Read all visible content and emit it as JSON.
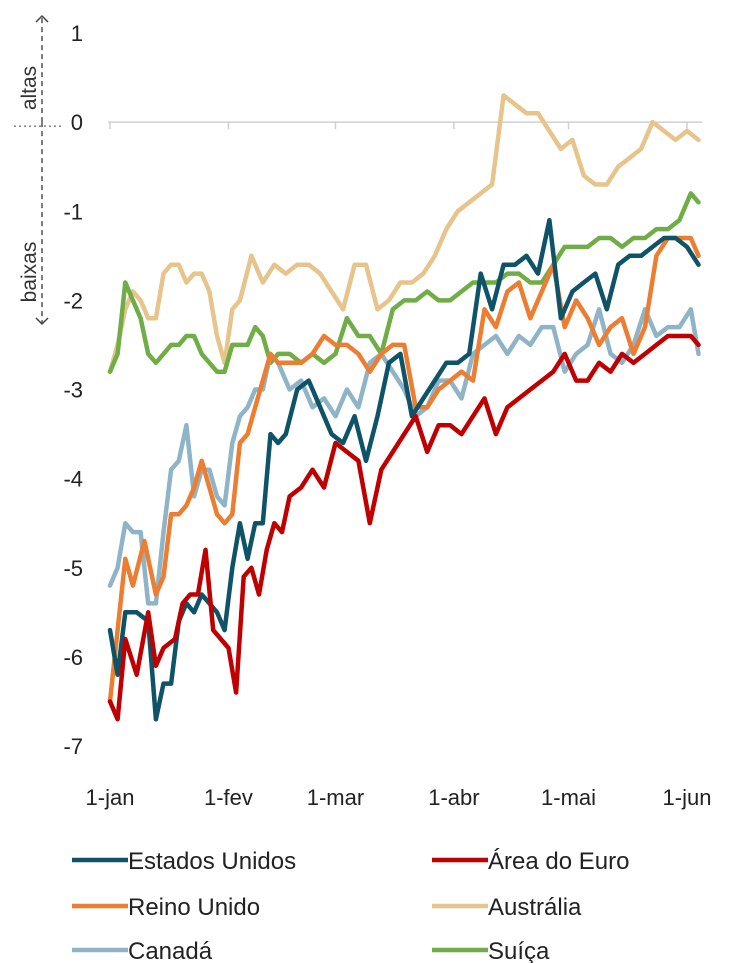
{
  "chart_data": {
    "type": "line",
    "title": "",
    "xlabel": "",
    "ylabel": "",
    "ylim": [
      -7,
      1
    ],
    "yticks": [
      1,
      0,
      -1,
      -2,
      -3,
      -4,
      -5,
      -6,
      -7
    ],
    "x_tick_labels": [
      "1-jan",
      "1-fev",
      "1-mar",
      "1-abr",
      "1-mai",
      "1-jun"
    ],
    "x_tick_days": [
      0,
      31,
      59,
      90,
      120,
      151
    ],
    "x_range_days": [
      0,
      154
    ],
    "grid": false,
    "legend_position": "bottom",
    "annotations": {
      "up_label": "altas",
      "down_label": "baixas"
    },
    "series": [
      {
        "name": "Estados Unidos",
        "color": "#0e5368",
        "x": [
          0,
          2,
          4,
          7,
          10,
          12,
          14,
          16,
          18,
          20,
          22,
          24,
          26,
          28,
          30,
          32,
          34,
          36,
          38,
          40,
          42,
          44,
          46,
          49,
          52,
          55,
          58,
          61,
          64,
          67,
          70,
          73,
          76,
          79,
          82,
          85,
          88,
          91,
          94,
          97,
          100,
          103,
          106,
          109,
          112,
          115,
          118,
          121,
          124,
          127,
          130,
          133,
          136,
          139,
          142,
          145,
          148,
          151,
          154
        ],
        "values": [
          -5.7,
          -6.2,
          -5.5,
          -5.5,
          -5.6,
          -6.7,
          -6.3,
          -6.3,
          -5.6,
          -5.4,
          -5.5,
          -5.3,
          -5.4,
          -5.5,
          -5.7,
          -5.0,
          -4.5,
          -4.9,
          -4.5,
          -4.5,
          -3.5,
          -3.6,
          -3.5,
          -3.0,
          -2.9,
          -3.2,
          -3.5,
          -3.6,
          -3.3,
          -3.8,
          -3.3,
          -2.7,
          -2.6,
          -3.3,
          -3.1,
          -2.9,
          -2.7,
          -2.7,
          -2.6,
          -1.7,
          -2.1,
          -1.6,
          -1.6,
          -1.5,
          -1.7,
          -1.1,
          -2.2,
          -1.9,
          -1.8,
          -1.7,
          -2.1,
          -1.6,
          -1.5,
          -1.5,
          -1.4,
          -1.3,
          -1.3,
          -1.4,
          -1.6
        ]
      },
      {
        "name": "Área do Euro",
        "color": "#c00000",
        "x": [
          0,
          2,
          4,
          7,
          10,
          12,
          14,
          17,
          19,
          21,
          23,
          25,
          27,
          29,
          31,
          33,
          35,
          37,
          39,
          41,
          43,
          45,
          47,
          50,
          53,
          56,
          59,
          62,
          65,
          68,
          71,
          74,
          77,
          80,
          83,
          86,
          89,
          92,
          95,
          98,
          101,
          104,
          107,
          110,
          113,
          116,
          119,
          122,
          125,
          128,
          131,
          134,
          137,
          140,
          143,
          146,
          149,
          152,
          154
        ],
        "values": [
          -6.5,
          -6.7,
          -5.8,
          -6.2,
          -5.5,
          -6.1,
          -5.9,
          -5.8,
          -5.4,
          -5.3,
          -5.3,
          -4.8,
          -5.7,
          -5.8,
          -5.9,
          -6.4,
          -5.1,
          -5.0,
          -5.3,
          -4.8,
          -4.5,
          -4.6,
          -4.2,
          -4.1,
          -3.9,
          -4.1,
          -3.6,
          -3.7,
          -3.8,
          -4.5,
          -3.9,
          -3.7,
          -3.5,
          -3.3,
          -3.7,
          -3.4,
          -3.4,
          -3.5,
          -3.3,
          -3.1,
          -3.5,
          -3.2,
          -3.1,
          -3.0,
          -2.9,
          -2.8,
          -2.6,
          -2.9,
          -2.9,
          -2.7,
          -2.8,
          -2.6,
          -2.7,
          -2.6,
          -2.5,
          -2.4,
          -2.4,
          -2.4,
          -2.5
        ]
      },
      {
        "name": "Reino Unido",
        "color": "#ed7d31",
        "x": [
          0,
          2,
          4,
          6,
          9,
          12,
          14,
          16,
          18,
          20,
          22,
          24,
          26,
          28,
          30,
          32,
          34,
          36,
          38,
          40,
          42,
          44,
          47,
          50,
          53,
          56,
          59,
          62,
          65,
          68,
          71,
          74,
          77,
          80,
          83,
          86,
          89,
          92,
          95,
          98,
          101,
          104,
          107,
          110,
          113,
          116,
          119,
          122,
          125,
          128,
          131,
          134,
          137,
          140,
          143,
          146,
          149,
          152,
          154
        ],
        "values": [
          -6.5,
          -5.7,
          -4.9,
          -5.2,
          -4.7,
          -5.3,
          -5.1,
          -4.4,
          -4.4,
          -4.3,
          -4.1,
          -3.8,
          -4.1,
          -4.4,
          -4.5,
          -4.4,
          -3.6,
          -3.5,
          -3.2,
          -2.9,
          -2.6,
          -2.7,
          -2.7,
          -2.7,
          -2.6,
          -2.4,
          -2.5,
          -2.5,
          -2.6,
          -2.8,
          -2.6,
          -2.5,
          -2.5,
          -3.2,
          -3.2,
          -3.0,
          -2.9,
          -2.8,
          -2.9,
          -2.1,
          -2.3,
          -1.9,
          -1.8,
          -2.2,
          -1.9,
          -1.6,
          -2.3,
          -2.0,
          -2.2,
          -2.5,
          -2.3,
          -2.2,
          -2.6,
          -2.3,
          -1.5,
          -1.3,
          -1.3,
          -1.3,
          -1.5
        ]
      },
      {
        "name": "Austrália",
        "color": "#e6c48c",
        "x": [
          0,
          2,
          4,
          6,
          8,
          10,
          12,
          14,
          16,
          18,
          20,
          22,
          24,
          26,
          28,
          30,
          32,
          34,
          37,
          40,
          43,
          46,
          49,
          52,
          55,
          58,
          61,
          64,
          67,
          70,
          73,
          76,
          79,
          82,
          85,
          88,
          91,
          94,
          97,
          100,
          103,
          106,
          109,
          112,
          115,
          118,
          121,
          124,
          127,
          130,
          133,
          136,
          139,
          142,
          145,
          148,
          151,
          154
        ],
        "values": [
          -2.8,
          -2.5,
          -2.1,
          -1.9,
          -2.0,
          -2.2,
          -2.2,
          -1.7,
          -1.6,
          -1.6,
          -1.8,
          -1.7,
          -1.7,
          -1.9,
          -2.4,
          -2.7,
          -2.1,
          -2.0,
          -1.5,
          -1.8,
          -1.6,
          -1.7,
          -1.6,
          -1.6,
          -1.7,
          -1.9,
          -2.1,
          -1.6,
          -1.6,
          -2.1,
          -2.0,
          -1.8,
          -1.8,
          -1.7,
          -1.5,
          -1.2,
          -1.0,
          -0.9,
          -0.8,
          -0.7,
          0.3,
          0.2,
          0.1,
          0.1,
          -0.1,
          -0.3,
          -0.2,
          -0.6,
          -0.7,
          -0.7,
          -0.5,
          -0.4,
          -0.3,
          0.0,
          -0.1,
          -0.2,
          -0.1,
          -0.2
        ]
      },
      {
        "name": "Canadá",
        "color": "#8fb4c7",
        "x": [
          0,
          2,
          4,
          6,
          8,
          10,
          12,
          14,
          16,
          18,
          20,
          22,
          24,
          26,
          28,
          30,
          32,
          34,
          36,
          38,
          40,
          42,
          44,
          47,
          50,
          53,
          56,
          59,
          62,
          65,
          68,
          71,
          74,
          77,
          80,
          83,
          86,
          89,
          92,
          95,
          98,
          101,
          104,
          107,
          110,
          113,
          116,
          119,
          122,
          125,
          128,
          131,
          134,
          137,
          140,
          143,
          146,
          149,
          152,
          154
        ],
        "values": [
          -5.2,
          -5.0,
          -4.5,
          -4.6,
          -4.6,
          -5.4,
          -5.4,
          -4.6,
          -3.9,
          -3.8,
          -3.4,
          -4.2,
          -3.9,
          -3.9,
          -4.2,
          -4.3,
          -3.6,
          -3.3,
          -3.2,
          -3.0,
          -3.0,
          -2.6,
          -2.7,
          -3.0,
          -2.9,
          -3.2,
          -3.1,
          -3.3,
          -3.0,
          -3.2,
          -2.7,
          -2.6,
          -2.8,
          -3.0,
          -3.3,
          -3.2,
          -2.9,
          -2.9,
          -3.1,
          -2.6,
          -2.5,
          -2.4,
          -2.6,
          -2.4,
          -2.5,
          -2.3,
          -2.3,
          -2.8,
          -2.6,
          -2.5,
          -2.1,
          -2.6,
          -2.7,
          -2.5,
          -2.1,
          -2.4,
          -2.3,
          -2.3,
          -2.1,
          -2.6
        ]
      },
      {
        "name": "Suíça",
        "color": "#70ad47",
        "x": [
          0,
          2,
          4,
          6,
          8,
          10,
          12,
          14,
          16,
          18,
          20,
          22,
          24,
          26,
          28,
          30,
          32,
          34,
          36,
          38,
          40,
          42,
          44,
          47,
          50,
          53,
          56,
          59,
          62,
          65,
          68,
          71,
          74,
          77,
          80,
          83,
          86,
          89,
          92,
          95,
          98,
          101,
          104,
          107,
          110,
          113,
          116,
          119,
          122,
          125,
          128,
          131,
          134,
          137,
          140,
          143,
          146,
          149,
          152,
          154
        ],
        "values": [
          -2.8,
          -2.6,
          -1.8,
          -2.0,
          -2.2,
          -2.6,
          -2.7,
          -2.6,
          -2.5,
          -2.5,
          -2.4,
          -2.4,
          -2.6,
          -2.7,
          -2.8,
          -2.8,
          -2.5,
          -2.5,
          -2.5,
          -2.3,
          -2.4,
          -2.7,
          -2.6,
          -2.6,
          -2.7,
          -2.6,
          -2.7,
          -2.6,
          -2.2,
          -2.4,
          -2.4,
          -2.6,
          -2.1,
          -2.0,
          -2.0,
          -1.9,
          -2.0,
          -2.0,
          -1.9,
          -1.8,
          -1.8,
          -1.8,
          -1.7,
          -1.7,
          -1.8,
          -1.8,
          -1.6,
          -1.4,
          -1.4,
          -1.4,
          -1.3,
          -1.3,
          -1.4,
          -1.3,
          -1.3,
          -1.2,
          -1.2,
          -1.1,
          -0.8,
          -0.9
        ]
      }
    ]
  }
}
